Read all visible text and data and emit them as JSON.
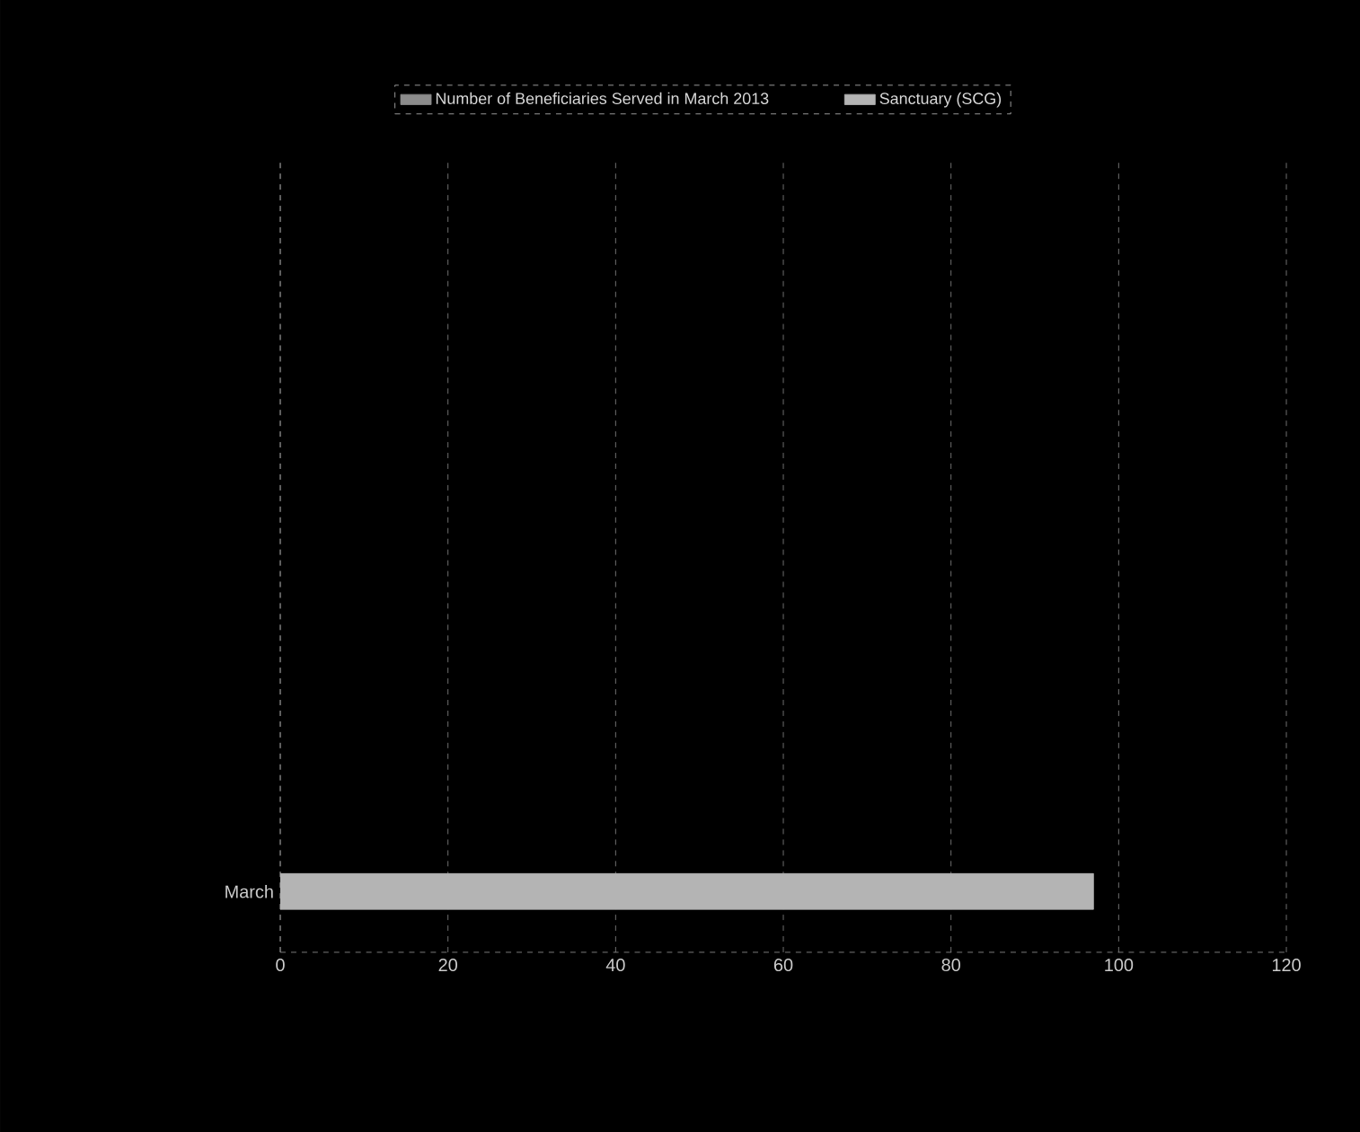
{
  "chart_data": {
    "type": "bar",
    "orientation": "horizontal",
    "categories": [
      "March"
    ],
    "series": [
      {
        "name": "Number of Beneficiaries Served in March 2013",
        "color": "#8c8c8c",
        "values": [
          null
        ]
      },
      {
        "name": "Sanctuary (SCG)",
        "color": "#b4b4b4",
        "values": [
          97
        ]
      }
    ],
    "xlim": [
      0,
      120
    ],
    "xticks": [
      0,
      20,
      40,
      60,
      80,
      100,
      120
    ],
    "grid": "x",
    "legend": "top"
  }
}
